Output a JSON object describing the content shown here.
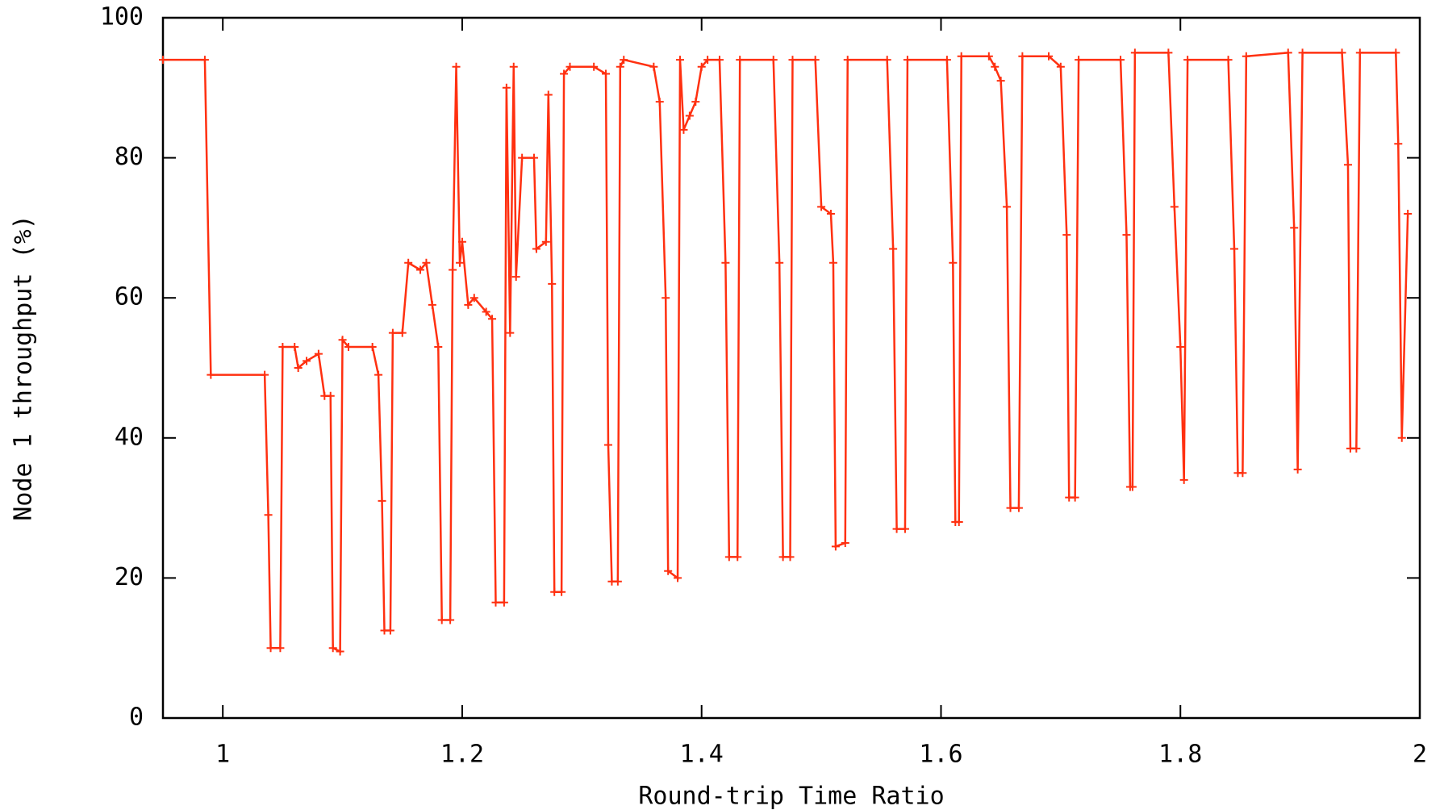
{
  "chart_data": {
    "type": "line",
    "xlabel": "Round-trip Time Ratio",
    "ylabel": "Node 1 throughput (%)",
    "xlim": [
      0.95,
      2
    ],
    "ylim": [
      0,
      100
    ],
    "xticks": [
      1,
      1.2,
      1.4,
      1.6,
      1.8,
      2
    ],
    "yticks": [
      0,
      20,
      40,
      60,
      80,
      100
    ],
    "grid": false,
    "x": [
      0.95,
      0.985,
      0.99,
      1.035,
      1.038,
      1.04,
      1.048,
      1.05,
      1.06,
      1.063,
      1.07,
      1.08,
      1.085,
      1.09,
      1.092,
      1.098,
      1.1,
      1.105,
      1.125,
      1.13,
      1.133,
      1.135,
      1.14,
      1.142,
      1.15,
      1.155,
      1.165,
      1.17,
      1.175,
      1.18,
      1.183,
      1.19,
      1.192,
      1.195,
      1.198,
      1.2,
      1.205,
      1.21,
      1.22,
      1.225,
      1.228,
      1.235,
      1.237,
      1.24,
      1.243,
      1.245,
      1.25,
      1.26,
      1.262,
      1.27,
      1.272,
      1.275,
      1.277,
      1.283,
      1.285,
      1.29,
      1.31,
      1.32,
      1.322,
      1.325,
      1.33,
      1.332,
      1.335,
      1.36,
      1.365,
      1.37,
      1.372,
      1.38,
      1.382,
      1.385,
      1.39,
      1.395,
      1.4,
      1.405,
      1.415,
      1.42,
      1.423,
      1.43,
      1.432,
      1.46,
      1.465,
      1.468,
      1.474,
      1.476,
      1.495,
      1.5,
      1.508,
      1.51,
      1.512,
      1.52,
      1.522,
      1.555,
      1.56,
      1.563,
      1.57,
      1.572,
      1.605,
      1.61,
      1.612,
      1.615,
      1.617,
      1.64,
      1.645,
      1.65,
      1.655,
      1.658,
      1.665,
      1.668,
      1.69,
      1.7,
      1.705,
      1.707,
      1.712,
      1.715,
      1.75,
      1.755,
      1.758,
      1.76,
      1.762,
      1.79,
      1.795,
      1.8,
      1.803,
      1.806,
      1.84,
      1.845,
      1.848,
      1.852,
      1.855,
      1.89,
      1.895,
      1.898,
      1.902,
      1.935,
      1.94,
      1.942,
      1.947,
      1.95,
      1.98,
      1.982,
      1.985,
      1.99
    ],
    "series": [
      {
        "name": "Node 1",
        "color": "#ff3010",
        "values": [
          94,
          94,
          49,
          49,
          29,
          10,
          10,
          53,
          53,
          50,
          51,
          52,
          46,
          46,
          10,
          9.5,
          54,
          53,
          53,
          49,
          31,
          12.5,
          12.5,
          55,
          55,
          65,
          64,
          65,
          59,
          53,
          14,
          14,
          64,
          93,
          65,
          68,
          59,
          60,
          58,
          57,
          16.5,
          16.5,
          90,
          55,
          93,
          63,
          80,
          80,
          67,
          68,
          89,
          62,
          18,
          18,
          92,
          93,
          93,
          92,
          39,
          19.5,
          19.5,
          93,
          94,
          93,
          88,
          60,
          21,
          20,
          94,
          84,
          86,
          88,
          93,
          94,
          94,
          65,
          23,
          23,
          94,
          94,
          65,
          23,
          23,
          94,
          94,
          73,
          72,
          65,
          24.5,
          25,
          94,
          94,
          67,
          27,
          27,
          94,
          94,
          65,
          28,
          28,
          94.5,
          94.5,
          93,
          91,
          73,
          30,
          30,
          94.5,
          94.5,
          93,
          69,
          31.5,
          31.5,
          94,
          94,
          69,
          33,
          33,
          95,
          95,
          73,
          53,
          34,
          94,
          94,
          67,
          35,
          35,
          94.5,
          95,
          70,
          35.5,
          95,
          95,
          79,
          38.5,
          38.5,
          95,
          95,
          82,
          40,
          72
        ]
      }
    ]
  }
}
